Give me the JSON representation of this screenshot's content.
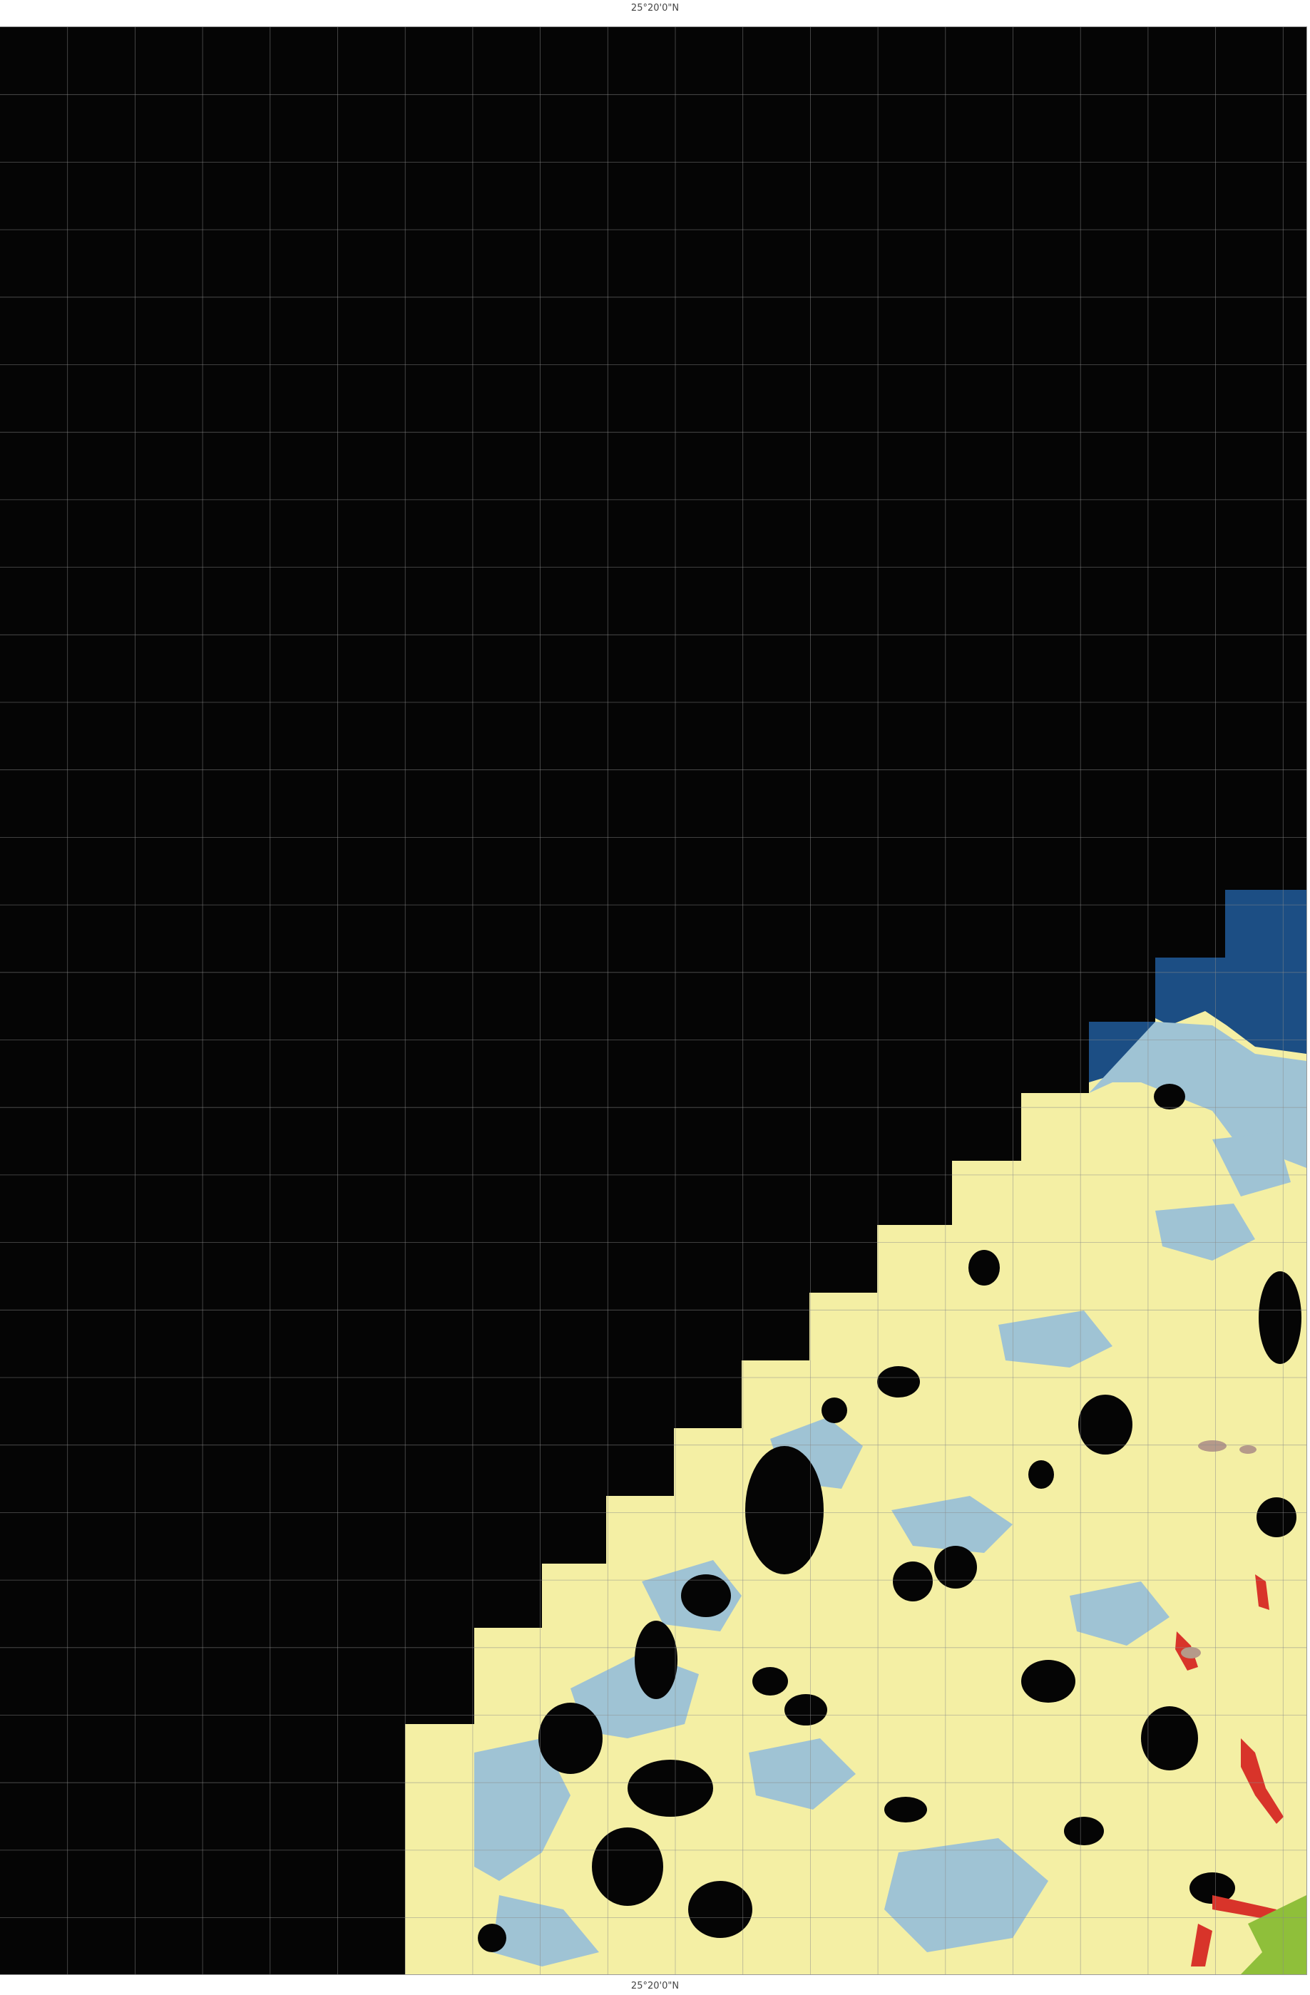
{
  "map": {
    "top_coordinate_label": "25°20'0\"N",
    "bottom_coordinate_label": "25°20'0\"N",
    "colors": {
      "background": "#050505",
      "grid": "#8a8a8a",
      "land": "#f4efa4",
      "light_blue": "#9fc3d4",
      "dark_blue": "#1c4e84",
      "red": "#d8342a",
      "green": "#8fbf3a",
      "brown": "#b59a8a",
      "nodata": "#050505"
    }
  }
}
